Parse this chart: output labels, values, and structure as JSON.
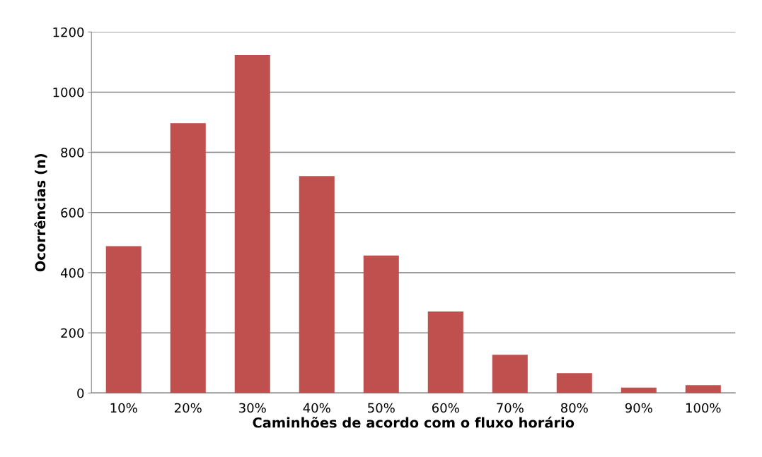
{
  "chart_data": {
    "type": "bar",
    "xlabel": "Caminhões de acordo com o fluxo horário",
    "ylabel": "Ocorrências (n)",
    "categories": [
      "10%",
      "20%",
      "30%",
      "40%",
      "50%",
      "60%",
      "70%",
      "80%",
      "90%",
      "100%"
    ],
    "values": [
      488,
      897,
      1123,
      721,
      457,
      271,
      127,
      66,
      18,
      26
    ],
    "color": "#c0504d",
    "ylim": [
      0,
      1200
    ],
    "yticks": [
      0,
      200,
      400,
      600,
      800,
      1000,
      1200
    ],
    "grid": "y"
  }
}
